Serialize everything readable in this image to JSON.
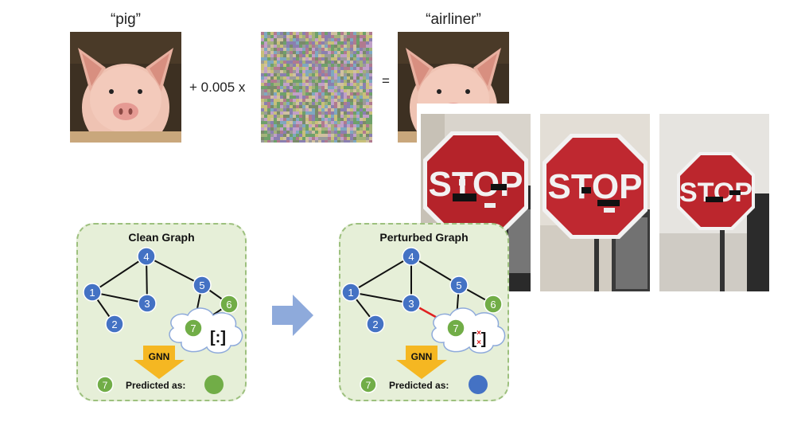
{
  "adversarial_image": {
    "left_label": "“pig”",
    "right_label": "“airliner”",
    "plus_text": "+ 0.005 x",
    "equals_text": "="
  },
  "stop_signs": {
    "sign_text": "STOP",
    "count": 3
  },
  "graphs": {
    "clean": {
      "title": "Clean Graph",
      "nodes": [
        "1",
        "2",
        "3",
        "4",
        "5",
        "6",
        "7"
      ],
      "gnn_label": "GNN",
      "predicted_label": "Predicted as:",
      "target_node": "7",
      "predicted_color": "#71ad47"
    },
    "perturbed": {
      "title": "Perturbed Graph",
      "nodes": [
        "1",
        "2",
        "3",
        "4",
        "5",
        "6",
        "7"
      ],
      "gnn_label": "GNN",
      "predicted_label": "Predicted as:",
      "target_node": "7",
      "predicted_color": "#4472c4"
    }
  },
  "colors": {
    "blue_node": "#4472c4",
    "green_node": "#71ad47",
    "panel_bg": "#e6efd8",
    "panel_border": "#9dc07e",
    "gnn_arrow": "#f5b722",
    "big_arrow": "#8eaadb",
    "perturbed_edge": "#e02020"
  }
}
